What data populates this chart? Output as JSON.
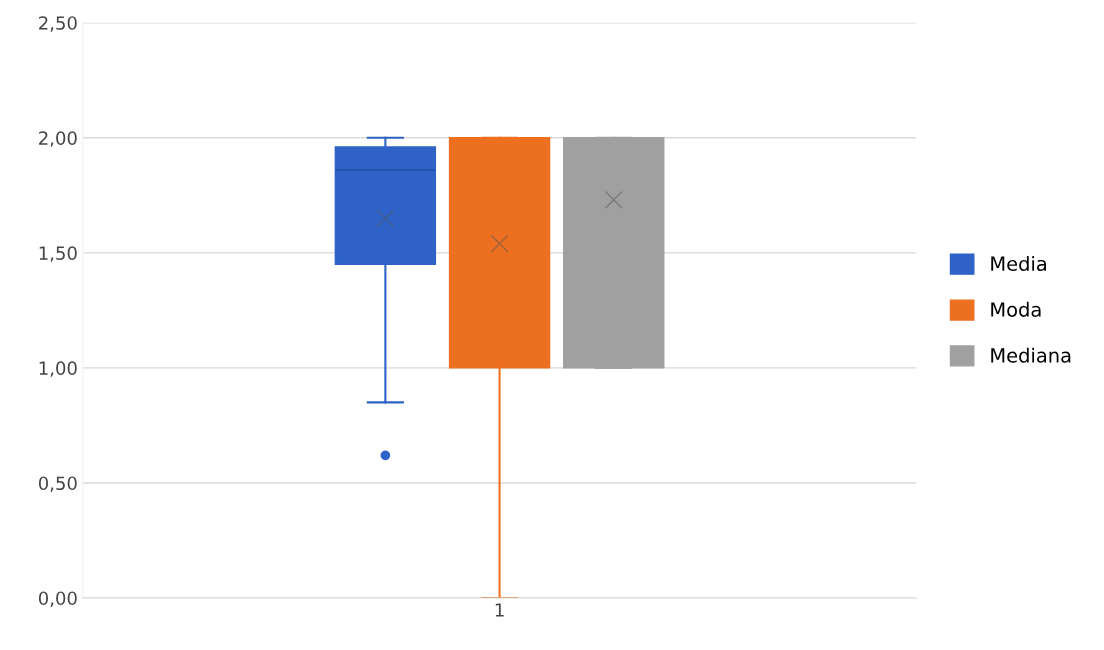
{
  "chart_data": {
    "type": "box",
    "categories": [
      "1"
    ],
    "series": [
      {
        "name": "Media",
        "color": "#2e62c6",
        "boxes": [
          {
            "low": 0.85,
            "q1": 1.45,
            "median": 1.86,
            "q3": 1.96,
            "high": 2.0,
            "mean": 1.65,
            "outliers": [
              0.62
            ]
          }
        ]
      },
      {
        "name": "Moda",
        "color": "#ed7020",
        "boxes": [
          {
            "low": 0.0,
            "q1": 1.0,
            "median": 2.0,
            "q3": 2.0,
            "high": 2.0,
            "mean": 1.54
          }
        ]
      },
      {
        "name": "Mediana",
        "color": "#a0a0a0",
        "boxes": [
          {
            "low": 1.0,
            "q1": 1.0,
            "median": 2.0,
            "q3": 2.0,
            "high": 2.0,
            "mean": 1.73
          }
        ]
      }
    ],
    "ylim": [
      0,
      2.5
    ],
    "yticks": [
      {
        "value": 0,
        "label": "0,00"
      },
      {
        "value": 0.5,
        "label": "0,50"
      },
      {
        "value": 1,
        "label": "1,00"
      },
      {
        "value": 1.5,
        "label": "1,50"
      },
      {
        "value": 2,
        "label": "2,00"
      },
      {
        "value": 2.5,
        "label": "2,50"
      }
    ],
    "grid": "y",
    "legend": "right"
  }
}
